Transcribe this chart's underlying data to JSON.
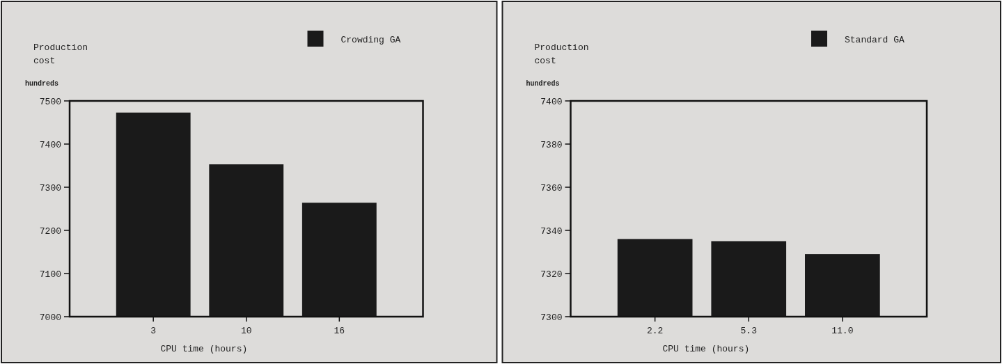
{
  "chart_data": [
    {
      "type": "bar",
      "ylabel": "Production cost",
      "xlabel": "CPU time (hours)",
      "annotations": [
        "hundreds"
      ],
      "categories": [
        "3",
        "10",
        "16"
      ],
      "series": [
        {
          "name": "Crowding GA",
          "color": "#1a1a1a",
          "values": [
            7473,
            7353,
            7264
          ]
        }
      ],
      "ylim": [
        7000,
        7500
      ],
      "yticks": [
        7000,
        7100,
        7200,
        7300,
        7400,
        7500
      ],
      "legend": "top right",
      "grid": false
    },
    {
      "type": "bar",
      "ylabel": "Production cost",
      "xlabel": "CPU time (hours)",
      "annotations": [
        "hundreds"
      ],
      "categories": [
        "2.2",
        "5.3",
        "11.0"
      ],
      "series": [
        {
          "name": "Standard GA",
          "color": "#1a1a1a",
          "values": [
            7336,
            7335,
            7329
          ]
        }
      ],
      "ylim": [
        7300,
        7400
      ],
      "yticks": [
        7300,
        7320,
        7340,
        7360,
        7380,
        7400
      ],
      "legend": "top right",
      "grid": false
    }
  ]
}
